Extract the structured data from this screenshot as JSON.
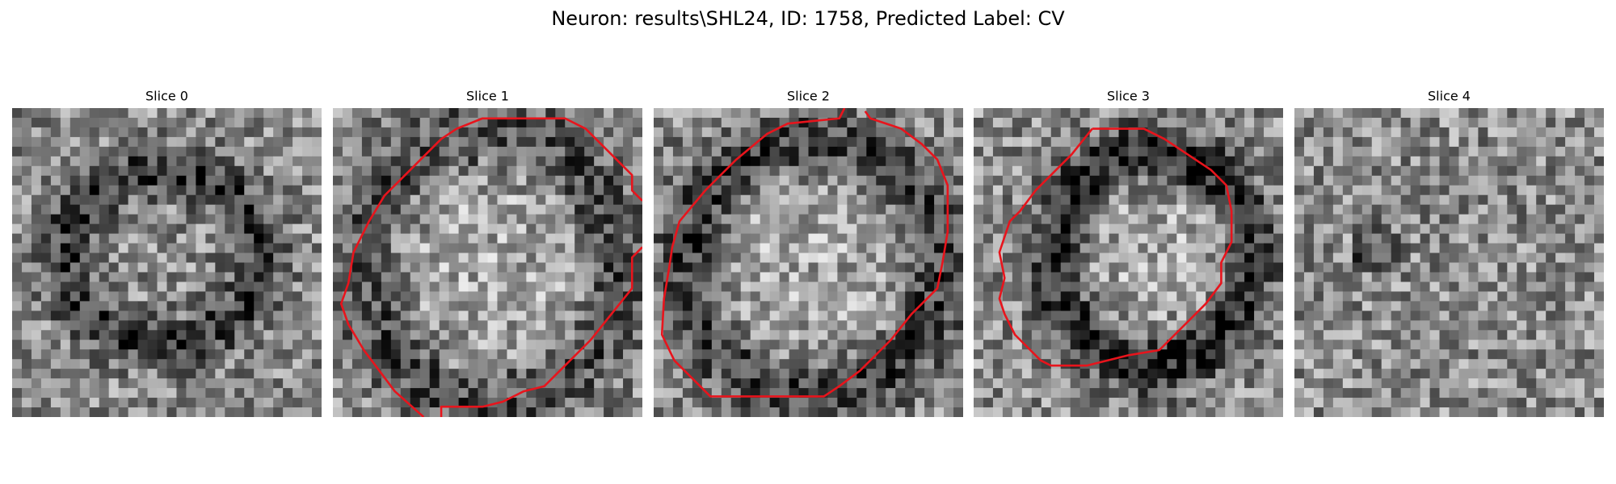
{
  "header": {
    "title": "Neuron: results\\SHL24, ID: 1758, Predicted Label: CV"
  },
  "panels": [
    {
      "title": "Slice 0"
    },
    {
      "title": "Slice 1"
    },
    {
      "title": "Slice 2"
    },
    {
      "title": "Slice 3"
    },
    {
      "title": "Slice 4"
    }
  ]
}
